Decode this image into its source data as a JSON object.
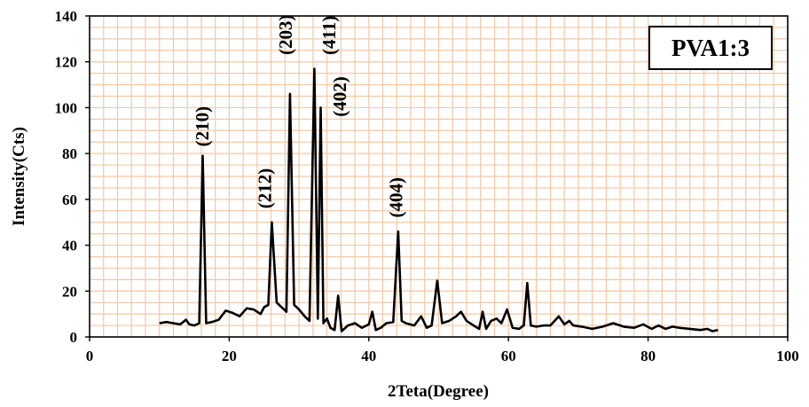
{
  "chart_data": {
    "type": "line",
    "title": "",
    "xlabel": "2Teta(Degree)",
    "ylabel": "Intensity(Cts)",
    "xlim": [
      0,
      100
    ],
    "ylim": [
      0,
      140
    ],
    "x_ticks": [
      0,
      20,
      40,
      60,
      80,
      100
    ],
    "y_ticks": [
      0,
      20,
      40,
      60,
      80,
      100,
      120,
      140
    ],
    "grid": true,
    "grid_color": "#f4c8a4",
    "line_color": "#000000",
    "legend_label": "PVA1:3",
    "legend_position": "top-right",
    "annotations": [
      {
        "text": "(210)",
        "x": 17.0,
        "y": 83
      },
      {
        "text": "(212)",
        "x": 26.0,
        "y": 56
      },
      {
        "text": "(203)",
        "x": 29.0,
        "y": 123
      },
      {
        "text": "(411)",
        "x": 35.2,
        "y": 123
      },
      {
        "text": "(402)",
        "x": 36.7,
        "y": 96
      },
      {
        "text": "(404)",
        "x": 44.8,
        "y": 52
      }
    ],
    "series": [
      {
        "x": [
          10,
          11,
          12,
          13,
          13.8,
          14.3,
          15,
          15.7,
          16.2,
          16.7,
          17.5,
          18.5,
          19.5,
          20.5,
          21.5,
          22.5,
          23.5,
          24.5,
          25,
          25.6,
          26.1,
          26.8,
          27.5,
          28.2,
          28.7,
          29.3,
          30,
          30.8,
          31.5,
          32.2,
          32.7,
          33.1,
          33.5,
          34,
          34.5,
          35.1,
          35.6,
          36.1,
          37,
          38,
          39,
          40,
          40.5,
          41,
          41.7,
          42.5,
          43.5,
          44.2,
          44.7,
          45.3,
          46.5,
          47.5,
          48.3,
          49,
          49.8,
          50.5,
          51.5,
          52.5,
          53.2,
          54,
          55,
          55.8,
          56.3,
          56.8,
          57.5,
          58.3,
          59,
          59.8,
          60.6,
          61.5,
          62.2,
          62.7,
          63.2,
          64,
          65,
          66,
          67.2,
          68,
          68.7,
          69.3,
          70.5,
          72,
          73.5,
          75,
          76.5,
          78,
          79.3,
          80.5,
          81.5,
          82.5,
          83.5,
          84.5,
          86,
          87.5,
          88.5,
          89.2,
          90
        ],
        "y": [
          6,
          6.5,
          6,
          5.5,
          7.5,
          5.5,
          5,
          6,
          79,
          6,
          6.5,
          7.5,
          11.5,
          10.5,
          9,
          12.5,
          12,
          10,
          13,
          14,
          50,
          15,
          13,
          11,
          106,
          14,
          12,
          9,
          7,
          117,
          8,
          100,
          6,
          8,
          4,
          3,
          18,
          2.5,
          5,
          6,
          4,
          5.5,
          11,
          3,
          4,
          6,
          6.5,
          46,
          7,
          6,
          5,
          9,
          4,
          5,
          24.5,
          6,
          7,
          9,
          11,
          7,
          5,
          3.5,
          11,
          3.5,
          7,
          8,
          6,
          12,
          4,
          3.5,
          5,
          23.5,
          5,
          4.5,
          5,
          5,
          9,
          5.5,
          7,
          5,
          4.5,
          3.5,
          4.5,
          6,
          4.5,
          4,
          5.5,
          3.5,
          5,
          3.5,
          4.5,
          4,
          3.5,
          3,
          3.5,
          2.5,
          3
        ]
      }
    ]
  }
}
